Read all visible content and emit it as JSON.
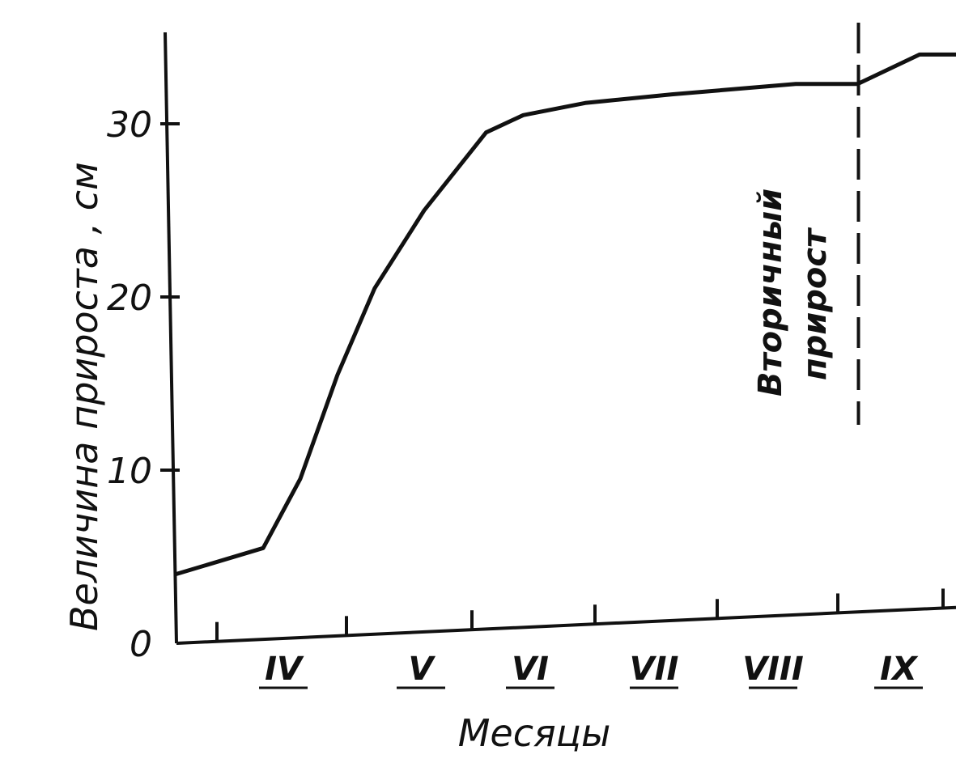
{
  "chart_data": {
    "type": "line",
    "xlabel": "Месяцы",
    "ylabel": "Величина прироста , см",
    "ylim": [
      0,
      35
    ],
    "yticks": [
      {
        "value": 0,
        "label": "0"
      },
      {
        "value": 10,
        "label": "10"
      },
      {
        "value": 20,
        "label": "20"
      },
      {
        "value": 30,
        "label": "30"
      }
    ],
    "xticks": [
      {
        "month": 4,
        "label": "IV"
      },
      {
        "month": 5,
        "label": "V"
      },
      {
        "month": 6,
        "label": "VI"
      },
      {
        "month": 7,
        "label": "VII"
      },
      {
        "month": 8,
        "label": "VIII"
      },
      {
        "month": 9,
        "label": "IX"
      }
    ],
    "series": [
      {
        "x": [
          3.0,
          3.7,
          4.0,
          4.3,
          4.6,
          5.0,
          5.5,
          5.8,
          6.3,
          7.0,
          8.0,
          8.5,
          9.0,
          9.4
        ],
        "values": [
          4,
          5.5,
          9.5,
          15.5,
          20.5,
          25,
          29.5,
          30.5,
          31.2,
          31.7,
          32.3,
          32.3,
          34,
          34
        ]
      }
    ],
    "annotations": [
      {
        "text_line1": "Вторичный",
        "text_line2": "прирост",
        "x": 8.5
      }
    ],
    "grid": false
  }
}
